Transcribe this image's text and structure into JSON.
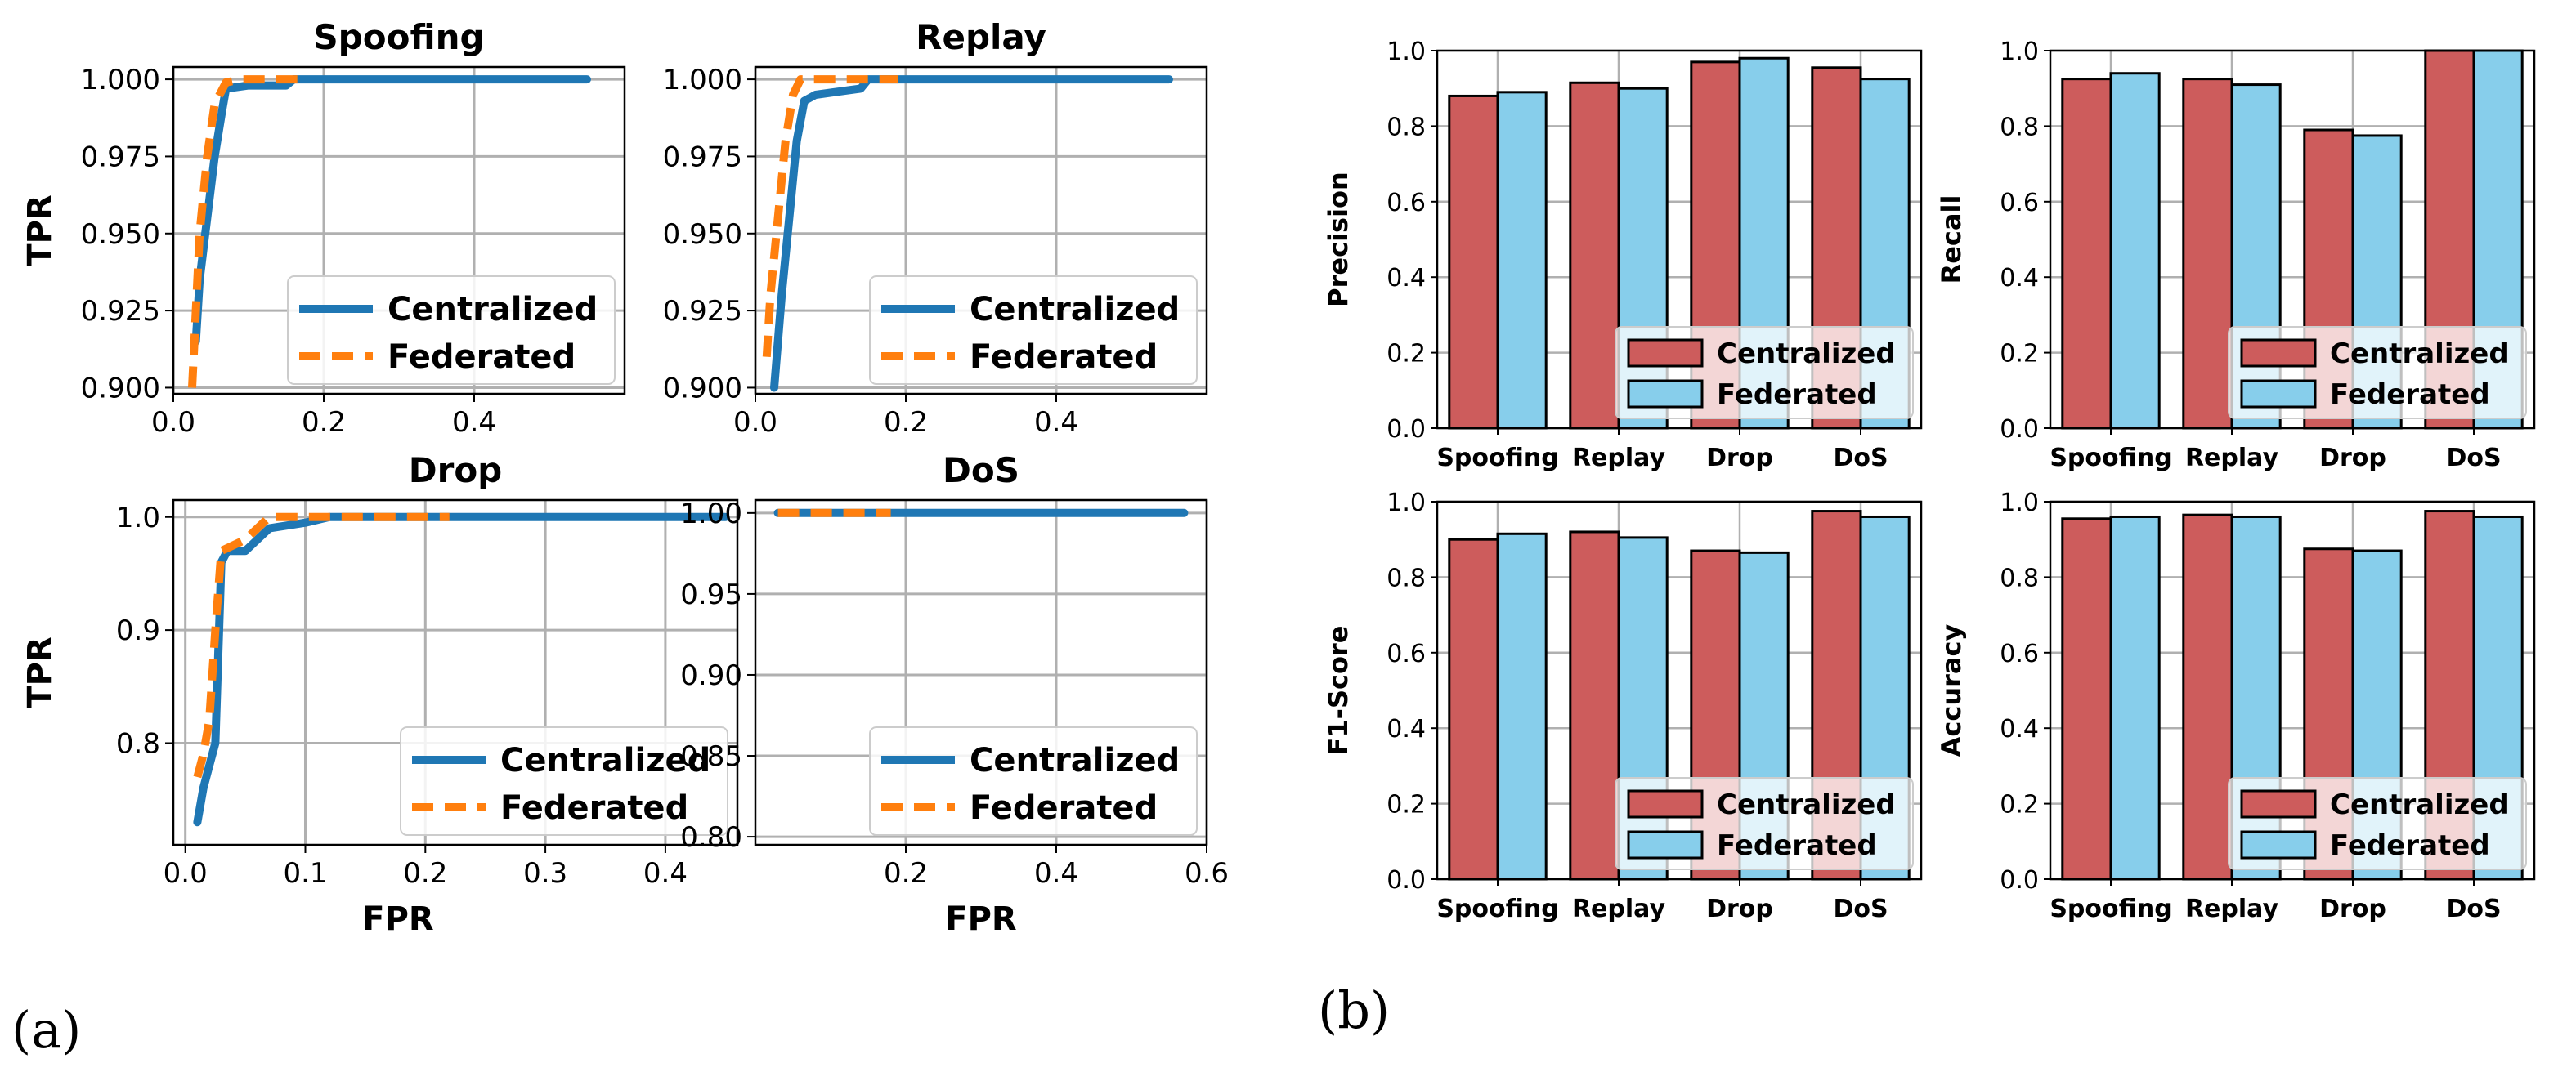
{
  "captions": {
    "a": "(a)",
    "b": "(b)"
  },
  "colors": {
    "centralized_line": "#1f77b4",
    "federated_line": "#ff7f0e",
    "centralized_bar": "#cd5c5c",
    "federated_bar": "#87ceeb",
    "grid": "#b0b0b0"
  },
  "chart_data": [
    {
      "type": "line",
      "title": "Spoofing",
      "xlabel": "",
      "ylabel": "TPR",
      "xlim": [
        0.0,
        0.6
      ],
      "ylim": [
        0.898,
        1.004
      ],
      "xticks": [
        0.0,
        0.2,
        0.4
      ],
      "xtick_labels": [
        "0.0",
        "0.2",
        "0.4"
      ],
      "yticks": [
        0.9,
        0.925,
        0.95,
        0.975,
        1.0
      ],
      "ytick_labels": [
        "0.900",
        "0.925",
        "0.950",
        "0.975",
        "1.000"
      ],
      "grid": true,
      "legend": "lower-right",
      "series": [
        {
          "name": "Centralized",
          "x": [
            0.03,
            0.035,
            0.045,
            0.055,
            0.065,
            0.07,
            0.1,
            0.15,
            0.16,
            0.55
          ],
          "y": [
            0.915,
            0.935,
            0.955,
            0.975,
            0.99,
            0.997,
            0.998,
            0.998,
            1.0,
            1.0
          ]
        },
        {
          "name": "Federated",
          "x": [
            0.025,
            0.03,
            0.035,
            0.045,
            0.055,
            0.07,
            0.09,
            0.18
          ],
          "y": [
            0.9,
            0.925,
            0.95,
            0.975,
            0.992,
            0.999,
            1.0,
            1.0
          ]
        }
      ]
    },
    {
      "type": "line",
      "title": "Replay",
      "xlabel": "",
      "ylabel": "",
      "xlim": [
        0.0,
        0.6
      ],
      "ylim": [
        0.898,
        1.004
      ],
      "xticks": [
        0.0,
        0.2,
        0.4
      ],
      "xtick_labels": [
        "0.0",
        "0.2",
        "0.4"
      ],
      "yticks": [
        0.9,
        0.925,
        0.95,
        0.975,
        1.0
      ],
      "ytick_labels": [
        "0.900",
        "0.925",
        "0.950",
        "0.975",
        "1.000"
      ],
      "grid": true,
      "legend": "lower-right",
      "series": [
        {
          "name": "Centralized",
          "x": [
            0.025,
            0.035,
            0.045,
            0.055,
            0.065,
            0.08,
            0.14,
            0.15,
            0.2,
            0.55
          ],
          "y": [
            0.9,
            0.93,
            0.955,
            0.98,
            0.993,
            0.995,
            0.997,
            1.0,
            1.0,
            1.0
          ]
        },
        {
          "name": "Federated",
          "x": [
            0.015,
            0.02,
            0.03,
            0.04,
            0.05,
            0.06,
            0.075,
            0.19
          ],
          "y": [
            0.91,
            0.93,
            0.955,
            0.98,
            0.995,
            1.0,
            1.0,
            1.0
          ]
        }
      ]
    },
    {
      "type": "line",
      "title": "Drop",
      "xlabel": "FPR",
      "ylabel": "TPR",
      "xlim": [
        -0.01,
        0.46
      ],
      "ylim": [
        0.71,
        1.015
      ],
      "xticks": [
        0.0,
        0.1,
        0.2,
        0.3,
        0.4
      ],
      "xtick_labels": [
        "0.0",
        "0.1",
        "0.2",
        "0.3",
        "0.4"
      ],
      "yticks": [
        0.8,
        0.9,
        1.0
      ],
      "ytick_labels": [
        "0.8",
        "0.9",
        "1.0"
      ],
      "grid": true,
      "legend": "lower-right",
      "series": [
        {
          "name": "Centralized",
          "x": [
            0.01,
            0.015,
            0.02,
            0.025,
            0.03,
            0.035,
            0.05,
            0.06,
            0.07,
            0.1,
            0.12,
            0.45
          ],
          "y": [
            0.73,
            0.76,
            0.78,
            0.8,
            0.96,
            0.97,
            0.97,
            0.98,
            0.99,
            0.995,
            1.0,
            1.0
          ]
        },
        {
          "name": "Federated",
          "x": [
            0.01,
            0.015,
            0.02,
            0.025,
            0.03,
            0.05,
            0.06,
            0.07,
            0.22
          ],
          "y": [
            0.77,
            0.79,
            0.82,
            0.9,
            0.97,
            0.98,
            0.99,
            1.0,
            1.0
          ]
        }
      ]
    },
    {
      "type": "line",
      "title": "DoS",
      "xlabel": "FPR",
      "ylabel": "",
      "xlim": [
        0.0,
        0.6
      ],
      "ylim": [
        0.795,
        1.008
      ],
      "xticks": [
        0.2,
        0.4,
        0.6
      ],
      "xtick_labels": [
        "0.2",
        "0.4",
        "0.6"
      ],
      "yticks": [
        0.8,
        0.85,
        0.9,
        0.95,
        1.0
      ],
      "ytick_labels": [
        "0.80",
        "0.85",
        "0.90",
        "0.95",
        "1.00"
      ],
      "grid": true,
      "legend": "lower-right",
      "series": [
        {
          "name": "Centralized",
          "x": [
            0.03,
            0.57
          ],
          "y": [
            1.0,
            1.0
          ]
        },
        {
          "name": "Federated",
          "x": [
            0.03,
            0.18
          ],
          "y": [
            1.0,
            1.0
          ]
        }
      ]
    },
    {
      "type": "bar",
      "title": "",
      "xlabel": "",
      "ylabel": "Precision",
      "ylim": [
        0,
        1.0
      ],
      "categories": [
        "Spoofing",
        "Replay",
        "Drop",
        "DoS"
      ],
      "yticks": [
        0.0,
        0.2,
        0.4,
        0.6,
        0.8,
        1.0
      ],
      "ytick_labels": [
        "0.0",
        "0.2",
        "0.4",
        "0.6",
        "0.8",
        "1.0"
      ],
      "grid": true,
      "legend": "lower-right",
      "series": [
        {
          "name": "Centralized",
          "values": [
            0.88,
            0.915,
            0.97,
            0.955
          ]
        },
        {
          "name": "Federated",
          "values": [
            0.89,
            0.9,
            0.98,
            0.925
          ]
        }
      ]
    },
    {
      "type": "bar",
      "title": "",
      "xlabel": "",
      "ylabel": "Recall",
      "ylim": [
        0,
        1.0
      ],
      "categories": [
        "Spoofing",
        "Replay",
        "Drop",
        "DoS"
      ],
      "yticks": [
        0.0,
        0.2,
        0.4,
        0.6,
        0.8,
        1.0
      ],
      "ytick_labels": [
        "0.0",
        "0.2",
        "0.4",
        "0.6",
        "0.8",
        "1.0"
      ],
      "grid": true,
      "legend": "lower-right",
      "series": [
        {
          "name": "Centralized",
          "values": [
            0.925,
            0.925,
            0.79,
            1.0
          ]
        },
        {
          "name": "Federated",
          "values": [
            0.94,
            0.91,
            0.775,
            1.0
          ]
        }
      ]
    },
    {
      "type": "bar",
      "title": "",
      "xlabel": "",
      "ylabel": "F1-Score",
      "ylim": [
        0,
        1.0
      ],
      "categories": [
        "Spoofing",
        "Replay",
        "Drop",
        "DoS"
      ],
      "yticks": [
        0.0,
        0.2,
        0.4,
        0.6,
        0.8,
        1.0
      ],
      "ytick_labels": [
        "0.0",
        "0.2",
        "0.4",
        "0.6",
        "0.8",
        "1.0"
      ],
      "grid": true,
      "legend": "lower-right",
      "series": [
        {
          "name": "Centralized",
          "values": [
            0.9,
            0.92,
            0.87,
            0.975
          ]
        },
        {
          "name": "Federated",
          "values": [
            0.915,
            0.905,
            0.865,
            0.96
          ]
        }
      ]
    },
    {
      "type": "bar",
      "title": "",
      "xlabel": "",
      "ylabel": "Accuracy",
      "ylim": [
        0,
        1.0
      ],
      "categories": [
        "Spoofing",
        "Replay",
        "Drop",
        "DoS"
      ],
      "yticks": [
        0.0,
        0.2,
        0.4,
        0.6,
        0.8,
        1.0
      ],
      "ytick_labels": [
        "0.0",
        "0.2",
        "0.4",
        "0.6",
        "0.8",
        "1.0"
      ],
      "grid": true,
      "legend": "lower-right",
      "series": [
        {
          "name": "Centralized",
          "values": [
            0.955,
            0.965,
            0.875,
            0.975
          ]
        },
        {
          "name": "Federated",
          "values": [
            0.96,
            0.96,
            0.87,
            0.96
          ]
        }
      ]
    }
  ]
}
